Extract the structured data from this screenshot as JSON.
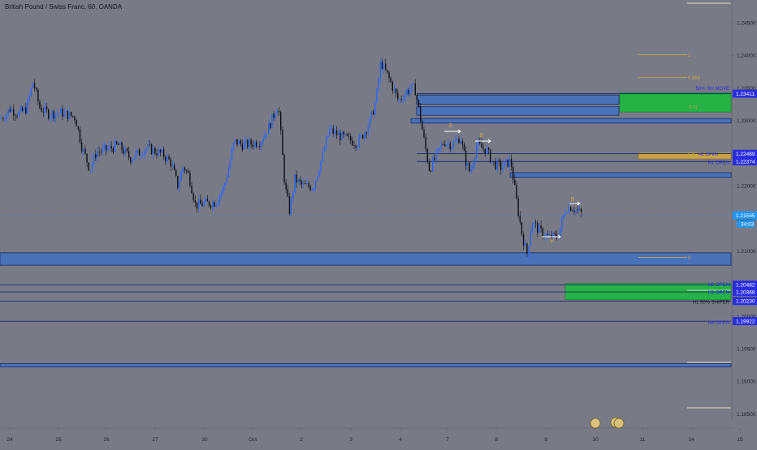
{
  "title": "British Pound / Swiss Franc, 60, OANDA",
  "colors": {
    "bg": "#787b86",
    "up": "#2962ff",
    "down": "#0c0e15",
    "zone": "#4a72b8",
    "zone_border": "#172a6b",
    "green": "#27b245",
    "gold": "#c7a24a",
    "tag_blue": "#2a2ee2",
    "tag_price": "#2196f3"
  },
  "price_axis": {
    "ticks": [
      "1.24500",
      "1.24000",
      "1.23500",
      "1.23000",
      "1.22500",
      "1.22000",
      "1.21500",
      "1.21000",
      "1.20500",
      "1.20000",
      "1.19500",
      "1.19000",
      "1.18500"
    ]
  },
  "time_axis": {
    "ticks": [
      "24",
      "25",
      "26",
      "27",
      "30",
      "Oct",
      "2",
      "3",
      "4",
      "7",
      "8",
      "9",
      "10",
      "11",
      "14",
      "15"
    ]
  },
  "price_tags": [
    {
      "label": "1.23411",
      "price": 1.23411,
      "color": "#2a2ee2"
    },
    {
      "label": "1.22489",
      "price": 1.22489,
      "color": "#2a2ee2"
    },
    {
      "label": "1.22374",
      "price": 1.22374,
      "color": "#2a2ee2"
    },
    {
      "label": "1.21545",
      "price": 1.21545,
      "color": "#2196f3"
    },
    {
      "label": "1.20482",
      "price": 1.20482,
      "color": "#2a2ee2"
    },
    {
      "label": "1.20368",
      "price": 1.20368,
      "color": "#2a2ee2"
    },
    {
      "label": "1.20230",
      "price": 1.2023,
      "color": "#2a2ee2"
    },
    {
      "label": "1.19922",
      "price": 1.19922,
      "color": "#2a2ee2"
    }
  ],
  "countdown": "34:03",
  "zone_labels": [
    {
      "text": "50% SH MOVE",
      "price": 1.2351
    },
    {
      "text": "H1 OPEN",
      "price": 1.2237
    },
    {
      "text": "H2 OPEN",
      "price": 1.2049
    },
    {
      "text": "H1 OPEN",
      "price": 1.2037
    },
    {
      "text": "H1 50% SNIPER",
      "price": 1.2021
    },
    {
      "text": "H4 OPEN",
      "price": 1.1991
    }
  ],
  "fib_labels": [
    {
      "text": "1",
      "price": 1.2401
    },
    {
      "text": "0.886",
      "price": 1.2366
    },
    {
      "text": "0.5",
      "price": 1.2249
    },
    {
      "text": "0",
      "price": 1.209
    }
  ],
  "markers": [
    {
      "text": "B",
      "at": "17-Oct-7"
    },
    {
      "text": "B",
      "at": "8"
    },
    {
      "text": "B",
      "at": "9"
    },
    {
      "text": "B",
      "at": "10"
    }
  ],
  "chart_data": {
    "type": "candlestick",
    "symbol": "GBPCHF",
    "timeframe": "60",
    "ylim": [
      1.1825,
      1.2485
    ],
    "close_path": [
      [
        0,
        1.2302
      ],
      [
        12,
        1.2318
      ],
      [
        22,
        1.231
      ],
      [
        32,
        1.2318
      ],
      [
        40,
        1.236
      ],
      [
        48,
        1.232
      ],
      [
        60,
        1.231
      ],
      [
        75,
        1.2312
      ],
      [
        92,
        1.2305
      ],
      [
        100,
        1.226
      ],
      [
        110,
        1.2225
      ],
      [
        118,
        1.2252
      ],
      [
        130,
        1.2255
      ],
      [
        145,
        1.2262
      ],
      [
        160,
        1.2242
      ],
      [
        180,
        1.2258
      ],
      [
        200,
        1.2248
      ],
      [
        210,
        1.2235
      ],
      [
        218,
        1.22
      ],
      [
        225,
        1.223
      ],
      [
        232,
        1.2215
      ],
      [
        240,
        1.217
      ],
      [
        250,
        1.2172
      ],
      [
        265,
        1.2175
      ],
      [
        275,
        1.2198
      ],
      [
        288,
        1.2268
      ],
      [
        300,
        1.2262
      ],
      [
        320,
        1.2268
      ],
      [
        330,
        1.229
      ],
      [
        342,
        1.2325
      ],
      [
        350,
        1.22
      ],
      [
        356,
        1.216
      ],
      [
        362,
        1.221
      ],
      [
        372,
        1.22
      ],
      [
        385,
        1.2198
      ],
      [
        395,
        1.224
      ],
      [
        405,
        1.2285
      ],
      [
        420,
        1.2275
      ],
      [
        440,
        1.2265
      ],
      [
        455,
        1.2298
      ],
      [
        462,
        1.233
      ],
      [
        468,
        1.239
      ],
      [
        478,
        1.2365
      ],
      [
        490,
        1.233
      ],
      [
        500,
        1.2345
      ],
      [
        510,
        1.235
      ],
      [
        516,
        1.231
      ],
      [
        522,
        1.2265
      ],
      [
        528,
        1.2225
      ],
      [
        536,
        1.2245
      ],
      [
        546,
        1.2268
      ],
      [
        556,
        1.2262
      ],
      [
        566,
        1.2275
      ],
      [
        572,
        1.224
      ],
      [
        578,
        1.222
      ],
      [
        586,
        1.2262
      ],
      [
        598,
        1.2255
      ],
      [
        606,
        1.2235
      ],
      [
        616,
        1.2228
      ],
      [
        628,
        1.2238
      ],
      [
        636,
        1.217
      ],
      [
        642,
        1.2125
      ],
      [
        648,
        1.2095
      ],
      [
        654,
        1.2145
      ],
      [
        664,
        1.213
      ],
      [
        676,
        1.212
      ],
      [
        686,
        1.2122
      ],
      [
        696,
        1.2165
      ],
      [
        702,
        1.2168
      ],
      [
        712,
        1.216
      ],
      [
        716,
        1.2156
      ]
    ]
  }
}
